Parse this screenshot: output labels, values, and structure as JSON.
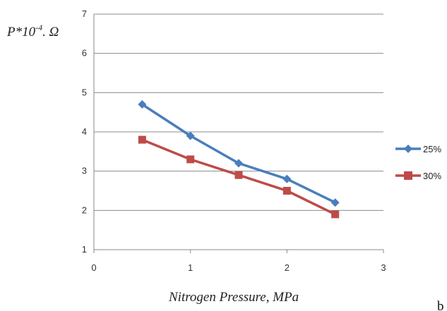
{
  "chart_data": {
    "type": "line",
    "title": "",
    "xlabel": "Nitrogen Pressure, MPa",
    "ylabel_main": "P*10",
    "ylabel_exp": "-4",
    "ylabel_unit": ". Ω",
    "xlim": [
      0,
      3
    ],
    "ylim": [
      1,
      7
    ],
    "xticks": [
      "0",
      "1",
      "2",
      "3"
    ],
    "yticks": [
      "1",
      "2",
      "3",
      "4",
      "5",
      "6",
      "7"
    ],
    "grid": "horizontal",
    "legend_position": "right",
    "x": [
      0.5,
      1.0,
      1.5,
      2.0,
      2.5
    ],
    "series": [
      {
        "name": "25%",
        "values": [
          4.7,
          3.9,
          3.2,
          2.8,
          2.2
        ],
        "color": "#4a7ebb",
        "marker": "diamond"
      },
      {
        "name": "30%",
        "values": [
          3.8,
          3.3,
          2.9,
          2.5,
          1.9
        ],
        "color": "#be4b48",
        "marker": "square"
      }
    ]
  },
  "panel_label": "b"
}
